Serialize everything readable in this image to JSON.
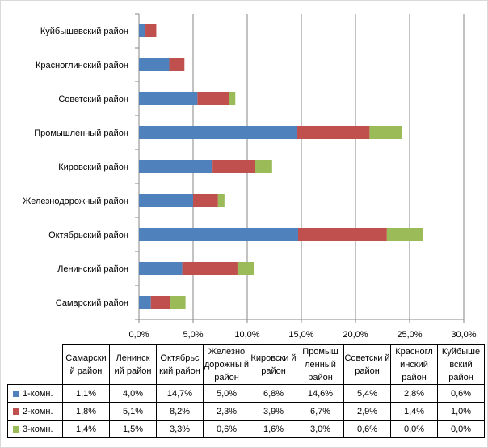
{
  "chart_data": {
    "type": "bar",
    "orientation": "horizontal",
    "stacked": true,
    "categories": [
      "Самарский район",
      "Ленинский район",
      "Октябрьский район",
      "Железнодорожный район",
      "Кировский район",
      "Промышленный район",
      "Советский район",
      "Красноглинский район",
      "Куйбышевский район"
    ],
    "table_headers": [
      "Самарски й район",
      "Ленинск ий район",
      "Октябрьс кий район",
      "Железно дорожны й район",
      "Кировски й район",
      "Промыш ленный район",
      "Советски й район",
      "Красногл инский район",
      "Куйбыше вский район"
    ],
    "series": [
      {
        "name": "1-комн.",
        "color": "#4f81bd",
        "values": [
          1.1,
          4.0,
          14.7,
          5.0,
          6.8,
          14.6,
          5.4,
          2.8,
          0.6
        ],
        "labels": [
          "1,1%",
          "4,0%",
          "14,7%",
          "5,0%",
          "6,8%",
          "14,6%",
          "5,4%",
          "2,8%",
          "0,6%"
        ]
      },
      {
        "name": "2-комн.",
        "color": "#c0504d",
        "values": [
          1.8,
          5.1,
          8.2,
          2.3,
          3.9,
          6.7,
          2.9,
          1.4,
          1.0
        ],
        "labels": [
          "1,8%",
          "5,1%",
          "8,2%",
          "2,3%",
          "3,9%",
          "6,7%",
          "2,9%",
          "1,4%",
          "1,0%"
        ]
      },
      {
        "name": "3-комн.",
        "color": "#9bbb59",
        "values": [
          1.4,
          1.5,
          3.3,
          0.6,
          1.6,
          3.0,
          0.6,
          0.0,
          0.0
        ],
        "labels": [
          "1,4%",
          "1,5%",
          "3,3%",
          "0,6%",
          "1,6%",
          "3,0%",
          "0,6%",
          "0,0%",
          "0,0%"
        ]
      }
    ],
    "xlim": [
      0,
      30
    ],
    "x_ticks": [
      "0,0%",
      "5,0%",
      "10,0%",
      "15,0%",
      "20,0%",
      "25,0%",
      "30,0%"
    ],
    "grid": true,
    "legend": "data-table"
  }
}
